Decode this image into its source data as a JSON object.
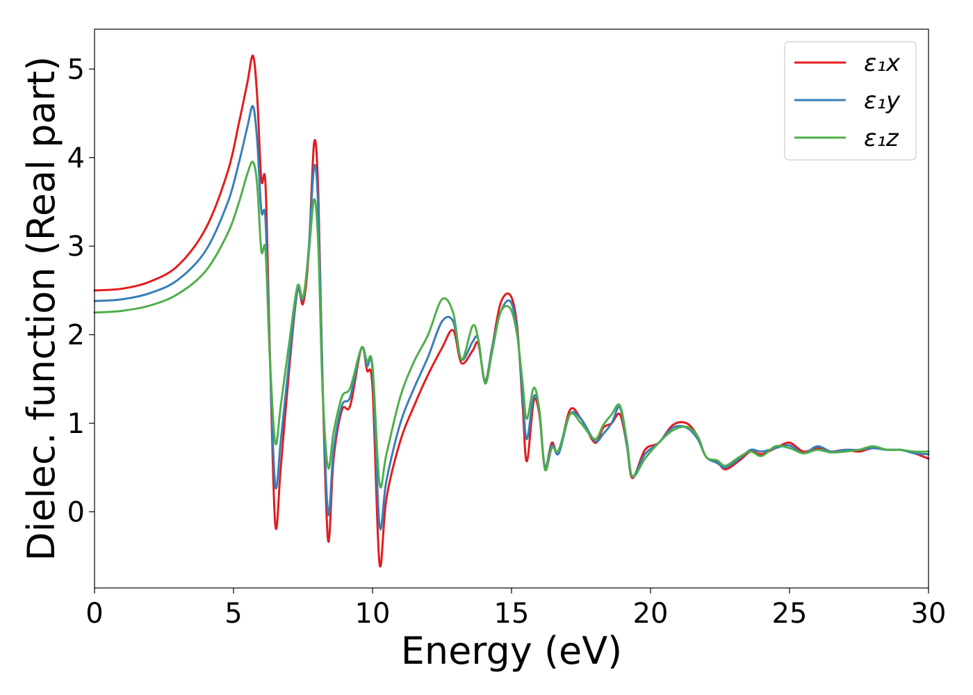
{
  "chart_data": {
    "type": "line",
    "title": "",
    "xlabel": "Energy (eV)",
    "ylabel": "Dielec. function (Real part)",
    "xlim": [
      0,
      30
    ],
    "ylim": [
      -0.86,
      5.45
    ],
    "xticks": [
      0,
      5,
      10,
      15,
      20,
      25,
      30
    ],
    "yticks": [
      0,
      1,
      2,
      3,
      4,
      5
    ],
    "grid": false,
    "legend_position": "top-right",
    "series": [
      {
        "name": "ε₁x",
        "color": "#e41a1c",
        "points": [
          [
            0.0,
            2.5
          ],
          [
            1.0,
            2.52
          ],
          [
            2.0,
            2.6
          ],
          [
            3.0,
            2.78
          ],
          [
            4.0,
            3.2
          ],
          [
            4.8,
            3.85
          ],
          [
            5.2,
            4.4
          ],
          [
            5.5,
            4.85
          ],
          [
            5.7,
            5.15
          ],
          [
            5.85,
            4.7
          ],
          [
            6.0,
            3.75
          ],
          [
            6.15,
            3.7
          ],
          [
            6.3,
            1.9
          ],
          [
            6.5,
            -0.14
          ],
          [
            6.7,
            0.5
          ],
          [
            7.0,
            1.6
          ],
          [
            7.3,
            2.5
          ],
          [
            7.5,
            2.35
          ],
          [
            7.7,
            2.9
          ],
          [
            7.9,
            4.17
          ],
          [
            8.05,
            3.6
          ],
          [
            8.2,
            1.5
          ],
          [
            8.4,
            -0.32
          ],
          [
            8.6,
            0.6
          ],
          [
            8.9,
            1.15
          ],
          [
            9.2,
            1.2
          ],
          [
            9.6,
            1.85
          ],
          [
            9.8,
            1.6
          ],
          [
            10.0,
            1.4
          ],
          [
            10.25,
            -0.58
          ],
          [
            10.5,
            0.15
          ],
          [
            11.0,
            0.8
          ],
          [
            11.5,
            1.2
          ],
          [
            12.0,
            1.55
          ],
          [
            12.5,
            1.85
          ],
          [
            12.9,
            2.05
          ],
          [
            13.2,
            1.68
          ],
          [
            13.6,
            1.82
          ],
          [
            13.8,
            1.9
          ],
          [
            14.05,
            1.48
          ],
          [
            14.3,
            1.85
          ],
          [
            14.6,
            2.35
          ],
          [
            14.95,
            2.45
          ],
          [
            15.2,
            2.1
          ],
          [
            15.4,
            1.2
          ],
          [
            15.55,
            0.57
          ],
          [
            15.8,
            1.25
          ],
          [
            16.0,
            1.1
          ],
          [
            16.2,
            0.5
          ],
          [
            16.45,
            0.78
          ],
          [
            16.7,
            0.66
          ],
          [
            17.1,
            1.15
          ],
          [
            17.5,
            1.05
          ],
          [
            18.0,
            0.78
          ],
          [
            18.3,
            0.95
          ],
          [
            18.6,
            1.0
          ],
          [
            18.9,
            1.1
          ],
          [
            19.15,
            0.75
          ],
          [
            19.35,
            0.38
          ],
          [
            19.8,
            0.7
          ],
          [
            20.3,
            0.78
          ],
          [
            20.8,
            0.98
          ],
          [
            21.3,
            1.0
          ],
          [
            21.7,
            0.85
          ],
          [
            22.0,
            0.62
          ],
          [
            22.4,
            0.56
          ],
          [
            22.7,
            0.48
          ],
          [
            23.2,
            0.58
          ],
          [
            23.6,
            0.68
          ],
          [
            24.0,
            0.65
          ],
          [
            24.5,
            0.72
          ],
          [
            25.0,
            0.78
          ],
          [
            25.5,
            0.68
          ],
          [
            26.0,
            0.72
          ],
          [
            26.5,
            0.68
          ],
          [
            27.0,
            0.7
          ],
          [
            27.5,
            0.68
          ],
          [
            28.0,
            0.72
          ],
          [
            28.5,
            0.7
          ],
          [
            29.0,
            0.7
          ],
          [
            29.5,
            0.66
          ],
          [
            30.0,
            0.6
          ]
        ]
      },
      {
        "name": "ε₁y",
        "color": "#377eb8",
        "points": [
          [
            0.0,
            2.38
          ],
          [
            1.0,
            2.4
          ],
          [
            2.0,
            2.47
          ],
          [
            3.0,
            2.62
          ],
          [
            4.0,
            2.95
          ],
          [
            4.8,
            3.5
          ],
          [
            5.2,
            3.95
          ],
          [
            5.5,
            4.35
          ],
          [
            5.7,
            4.58
          ],
          [
            5.85,
            4.2
          ],
          [
            6.0,
            3.4
          ],
          [
            6.15,
            3.3
          ],
          [
            6.3,
            1.8
          ],
          [
            6.5,
            0.3
          ],
          [
            6.7,
            0.8
          ],
          [
            7.0,
            1.7
          ],
          [
            7.3,
            2.5
          ],
          [
            7.5,
            2.4
          ],
          [
            7.7,
            2.95
          ],
          [
            7.9,
            3.9
          ],
          [
            8.05,
            3.4
          ],
          [
            8.2,
            1.5
          ],
          [
            8.4,
            -0.02
          ],
          [
            8.6,
            0.7
          ],
          [
            8.9,
            1.2
          ],
          [
            9.2,
            1.3
          ],
          [
            9.6,
            1.85
          ],
          [
            9.8,
            1.65
          ],
          [
            10.0,
            1.6
          ],
          [
            10.25,
            -0.15
          ],
          [
            10.5,
            0.35
          ],
          [
            11.0,
            1.0
          ],
          [
            11.5,
            1.4
          ],
          [
            12.0,
            1.75
          ],
          [
            12.5,
            2.15
          ],
          [
            12.9,
            2.15
          ],
          [
            13.2,
            1.72
          ],
          [
            13.6,
            1.92
          ],
          [
            13.8,
            1.95
          ],
          [
            14.05,
            1.46
          ],
          [
            14.3,
            1.85
          ],
          [
            14.6,
            2.25
          ],
          [
            14.95,
            2.38
          ],
          [
            15.2,
            2.05
          ],
          [
            15.4,
            1.3
          ],
          [
            15.55,
            0.82
          ],
          [
            15.8,
            1.3
          ],
          [
            16.0,
            1.15
          ],
          [
            16.2,
            0.5
          ],
          [
            16.45,
            0.75
          ],
          [
            16.7,
            0.66
          ],
          [
            17.1,
            1.1
          ],
          [
            17.5,
            1.05
          ],
          [
            18.0,
            0.8
          ],
          [
            18.3,
            0.88
          ],
          [
            18.6,
            1.0
          ],
          [
            18.9,
            1.18
          ],
          [
            19.15,
            0.75
          ],
          [
            19.35,
            0.4
          ],
          [
            19.8,
            0.65
          ],
          [
            20.3,
            0.78
          ],
          [
            20.8,
            0.95
          ],
          [
            21.3,
            0.95
          ],
          [
            21.7,
            0.82
          ],
          [
            22.0,
            0.62
          ],
          [
            22.4,
            0.55
          ],
          [
            22.7,
            0.5
          ],
          [
            23.2,
            0.6
          ],
          [
            23.6,
            0.7
          ],
          [
            24.0,
            0.68
          ],
          [
            24.5,
            0.72
          ],
          [
            25.0,
            0.75
          ],
          [
            25.5,
            0.66
          ],
          [
            26.0,
            0.74
          ],
          [
            26.5,
            0.68
          ],
          [
            27.0,
            0.7
          ],
          [
            27.5,
            0.7
          ],
          [
            28.0,
            0.72
          ],
          [
            28.5,
            0.7
          ],
          [
            29.0,
            0.7
          ],
          [
            29.5,
            0.66
          ],
          [
            30.0,
            0.65
          ]
        ]
      },
      {
        "name": "ε₁z",
        "color": "#4daf4a",
        "points": [
          [
            0.0,
            2.25
          ],
          [
            1.0,
            2.27
          ],
          [
            2.0,
            2.33
          ],
          [
            3.0,
            2.46
          ],
          [
            4.0,
            2.72
          ],
          [
            4.8,
            3.15
          ],
          [
            5.2,
            3.5
          ],
          [
            5.5,
            3.82
          ],
          [
            5.7,
            3.95
          ],
          [
            5.85,
            3.7
          ],
          [
            6.0,
            2.95
          ],
          [
            6.15,
            2.95
          ],
          [
            6.3,
            1.8
          ],
          [
            6.5,
            0.78
          ],
          [
            6.7,
            1.2
          ],
          [
            7.0,
            1.9
          ],
          [
            7.3,
            2.55
          ],
          [
            7.5,
            2.42
          ],
          [
            7.7,
            2.9
          ],
          [
            7.9,
            3.53
          ],
          [
            8.05,
            3.0
          ],
          [
            8.2,
            1.4
          ],
          [
            8.4,
            0.5
          ],
          [
            8.6,
            0.9
          ],
          [
            8.9,
            1.3
          ],
          [
            9.2,
            1.4
          ],
          [
            9.6,
            1.85
          ],
          [
            9.8,
            1.7
          ],
          [
            10.0,
            1.65
          ],
          [
            10.25,
            0.32
          ],
          [
            10.5,
            0.65
          ],
          [
            11.0,
            1.3
          ],
          [
            11.5,
            1.7
          ],
          [
            12.0,
            2.0
          ],
          [
            12.5,
            2.4
          ],
          [
            12.9,
            2.25
          ],
          [
            13.2,
            1.72
          ],
          [
            13.6,
            2.1
          ],
          [
            13.8,
            1.95
          ],
          [
            14.05,
            1.45
          ],
          [
            14.3,
            1.8
          ],
          [
            14.6,
            2.25
          ],
          [
            14.95,
            2.3
          ],
          [
            15.2,
            2.0
          ],
          [
            15.4,
            1.45
          ],
          [
            15.55,
            1.05
          ],
          [
            15.8,
            1.4
          ],
          [
            16.0,
            1.15
          ],
          [
            16.2,
            0.48
          ],
          [
            16.45,
            0.72
          ],
          [
            16.7,
            0.7
          ],
          [
            17.1,
            1.1
          ],
          [
            17.5,
            1.0
          ],
          [
            18.0,
            0.82
          ],
          [
            18.3,
            0.98
          ],
          [
            18.6,
            1.1
          ],
          [
            18.9,
            1.2
          ],
          [
            19.15,
            0.8
          ],
          [
            19.35,
            0.4
          ],
          [
            19.8,
            0.6
          ],
          [
            20.3,
            0.78
          ],
          [
            20.8,
            0.92
          ],
          [
            21.3,
            0.96
          ],
          [
            21.7,
            0.85
          ],
          [
            22.0,
            0.62
          ],
          [
            22.4,
            0.58
          ],
          [
            22.7,
            0.52
          ],
          [
            23.2,
            0.62
          ],
          [
            23.6,
            0.68
          ],
          [
            24.0,
            0.63
          ],
          [
            24.5,
            0.74
          ],
          [
            25.0,
            0.72
          ],
          [
            25.5,
            0.66
          ],
          [
            26.0,
            0.7
          ],
          [
            26.5,
            0.67
          ],
          [
            27.0,
            0.68
          ],
          [
            27.5,
            0.7
          ],
          [
            28.0,
            0.74
          ],
          [
            28.5,
            0.7
          ],
          [
            29.0,
            0.7
          ],
          [
            29.5,
            0.68
          ],
          [
            30.0,
            0.68
          ]
        ]
      }
    ]
  }
}
